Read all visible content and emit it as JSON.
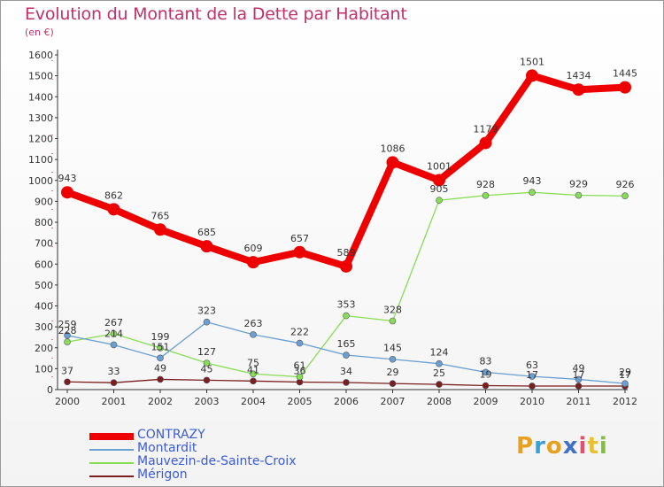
{
  "title": "Evolution du Montant de la Dette par Habitant",
  "subtitle": "(en €)",
  "brand": {
    "letters": [
      "P",
      "r",
      "o",
      "x",
      "i",
      "t",
      "i"
    ],
    "colors": [
      "#e8a020",
      "#3aa0d8",
      "#e8a020",
      "#4070c8",
      "#e05070",
      "#e8c030",
      "#80c040"
    ]
  },
  "chart_data": {
    "type": "line",
    "title": "Evolution du Montant de la Dette par Habitant",
    "ylabel": "(en €)",
    "xlabel": "",
    "x": [
      "2000",
      "2001",
      "2002",
      "2003",
      "2004",
      "2005",
      "2006",
      "2007",
      "2008",
      "2009",
      "2010",
      "2011",
      "2012"
    ],
    "ylim": [
      0,
      1600
    ],
    "yticks": [
      "0",
      "100",
      "200",
      "300",
      "400",
      "500",
      "600",
      "700",
      "800",
      "900",
      "1000",
      "1100",
      "1200",
      "1300",
      "1400",
      "1500",
      "1600"
    ],
    "grid": false,
    "legend_position": "bottom-left",
    "series": [
      {
        "name": "CONTRAZY",
        "color": "#ee0000",
        "values": [
          943,
          862,
          765,
          685,
          609,
          657,
          589,
          1086,
          1001,
          1179,
          1501,
          1434,
          1445
        ],
        "labels": [
          "943",
          "862",
          "765",
          "685",
          "609",
          "657",
          "589",
          "1086",
          "1001",
          "1179",
          "1501",
          "1434",
          "1445"
        ]
      },
      {
        "name": "Montardit",
        "color": "#6a9fd0",
        "values": [
          259,
          214,
          151,
          323,
          263,
          222,
          165,
          145,
          124,
          83,
          63,
          49,
          29
        ],
        "labels": [
          "259",
          "214",
          "151",
          "323",
          "263",
          "222",
          "165",
          "145",
          "124",
          "83",
          "63",
          "49",
          "29"
        ]
      },
      {
        "name": "Mauvezin-de-Sainte-Croix",
        "color": "#88dd55",
        "values": [
          228,
          267,
          199,
          127,
          75,
          61,
          353,
          328,
          905,
          928,
          943,
          929,
          926
        ],
        "labels": [
          "228",
          "267",
          "199",
          "127",
          "75",
          "61",
          "353",
          "328",
          "905",
          "928",
          "943",
          "929",
          "926"
        ]
      },
      {
        "name": "Mérigon",
        "color": "#7a1e1e",
        "values": [
          37,
          33,
          49,
          45,
          41,
          36,
          34,
          29,
          25,
          19,
          17,
          17,
          17
        ],
        "labels": [
          "37",
          "33",
          "49",
          "45",
          "41",
          "36",
          "34",
          "29",
          "25",
          "19",
          "17",
          "17",
          "17"
        ]
      }
    ]
  }
}
